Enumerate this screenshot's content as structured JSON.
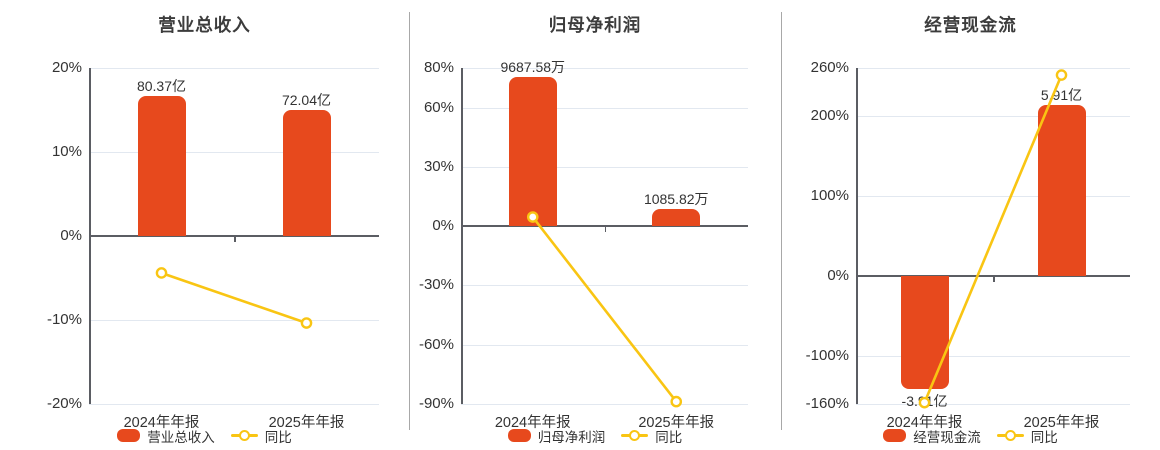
{
  "colors": {
    "bar": "#E7491D",
    "line": "#F9C513",
    "grid": "#E2E8F0",
    "zero_axis": "#5B5D63",
    "y_axis": "#5B5D63",
    "divider": "#A8A8A8",
    "title_text": "#3C3C3C",
    "tick_text": "#333333",
    "label_text": "#333333",
    "background": "#FFFFFF"
  },
  "chart_data": [
    {
      "type": "bar",
      "title": "营业总收入",
      "categories": [
        "2024年年报",
        "2025年年报"
      ],
      "bar_series": {
        "name": "营业总收入",
        "value_labels": [
          "80.37亿",
          "72.04亿"
        ],
        "axis_heights_pct": [
          16.7,
          14.97
        ]
      },
      "line_series": {
        "name": "同比",
        "values_pct": [
          -4.4,
          -10.36
        ]
      },
      "yaxis": {
        "min": -20,
        "max": 20,
        "unit": "%",
        "tick_values": [
          20,
          10,
          0,
          -10,
          -20
        ],
        "tick_labels": [
          "20%",
          "10%",
          "0%",
          "-10%",
          "-20%"
        ]
      },
      "legend": [
        "营业总收入",
        "同比"
      ]
    },
    {
      "type": "bar",
      "title": "归母净利润",
      "categories": [
        "2024年年报",
        "2025年年报"
      ],
      "bar_series": {
        "name": "归母净利润",
        "value_labels": [
          "9687.58万",
          "1085.82万"
        ],
        "axis_heights_pct": [
          75.4,
          8.45
        ]
      },
      "line_series": {
        "name": "同比",
        "values_pct": [
          4.6,
          -88.79
        ]
      },
      "yaxis": {
        "min": -90,
        "max": 80,
        "unit": "%",
        "tick_values": [
          80,
          60,
          30,
          0,
          -30,
          -60,
          -90
        ],
        "tick_labels": [
          "80%",
          "60%",
          "30%",
          "0%",
          "-30%",
          "-60%",
          "-90%"
        ]
      },
      "legend": [
        "归母净利润",
        "同比"
      ]
    },
    {
      "type": "bar",
      "title": "经营现金流",
      "categories": [
        "2024年年报",
        "2025年年报"
      ],
      "bar_series": {
        "name": "经营现金流",
        "value_labels": [
          "-3.91亿",
          "5.91亿"
        ],
        "axis_heights_pct": [
          -141,
          214
        ]
      },
      "line_series": {
        "name": "同比",
        "values_pct": [
          -158.3,
          251.2
        ]
      },
      "yaxis": {
        "min": -160,
        "max": 260,
        "unit": "%",
        "tick_values": [
          260,
          200,
          100,
          0,
          -100,
          -160
        ],
        "tick_labels": [
          "260%",
          "200%",
          "100%",
          "0%",
          "-100%",
          "-160%"
        ]
      },
      "legend": [
        "经营现金流",
        "同比"
      ]
    }
  ]
}
